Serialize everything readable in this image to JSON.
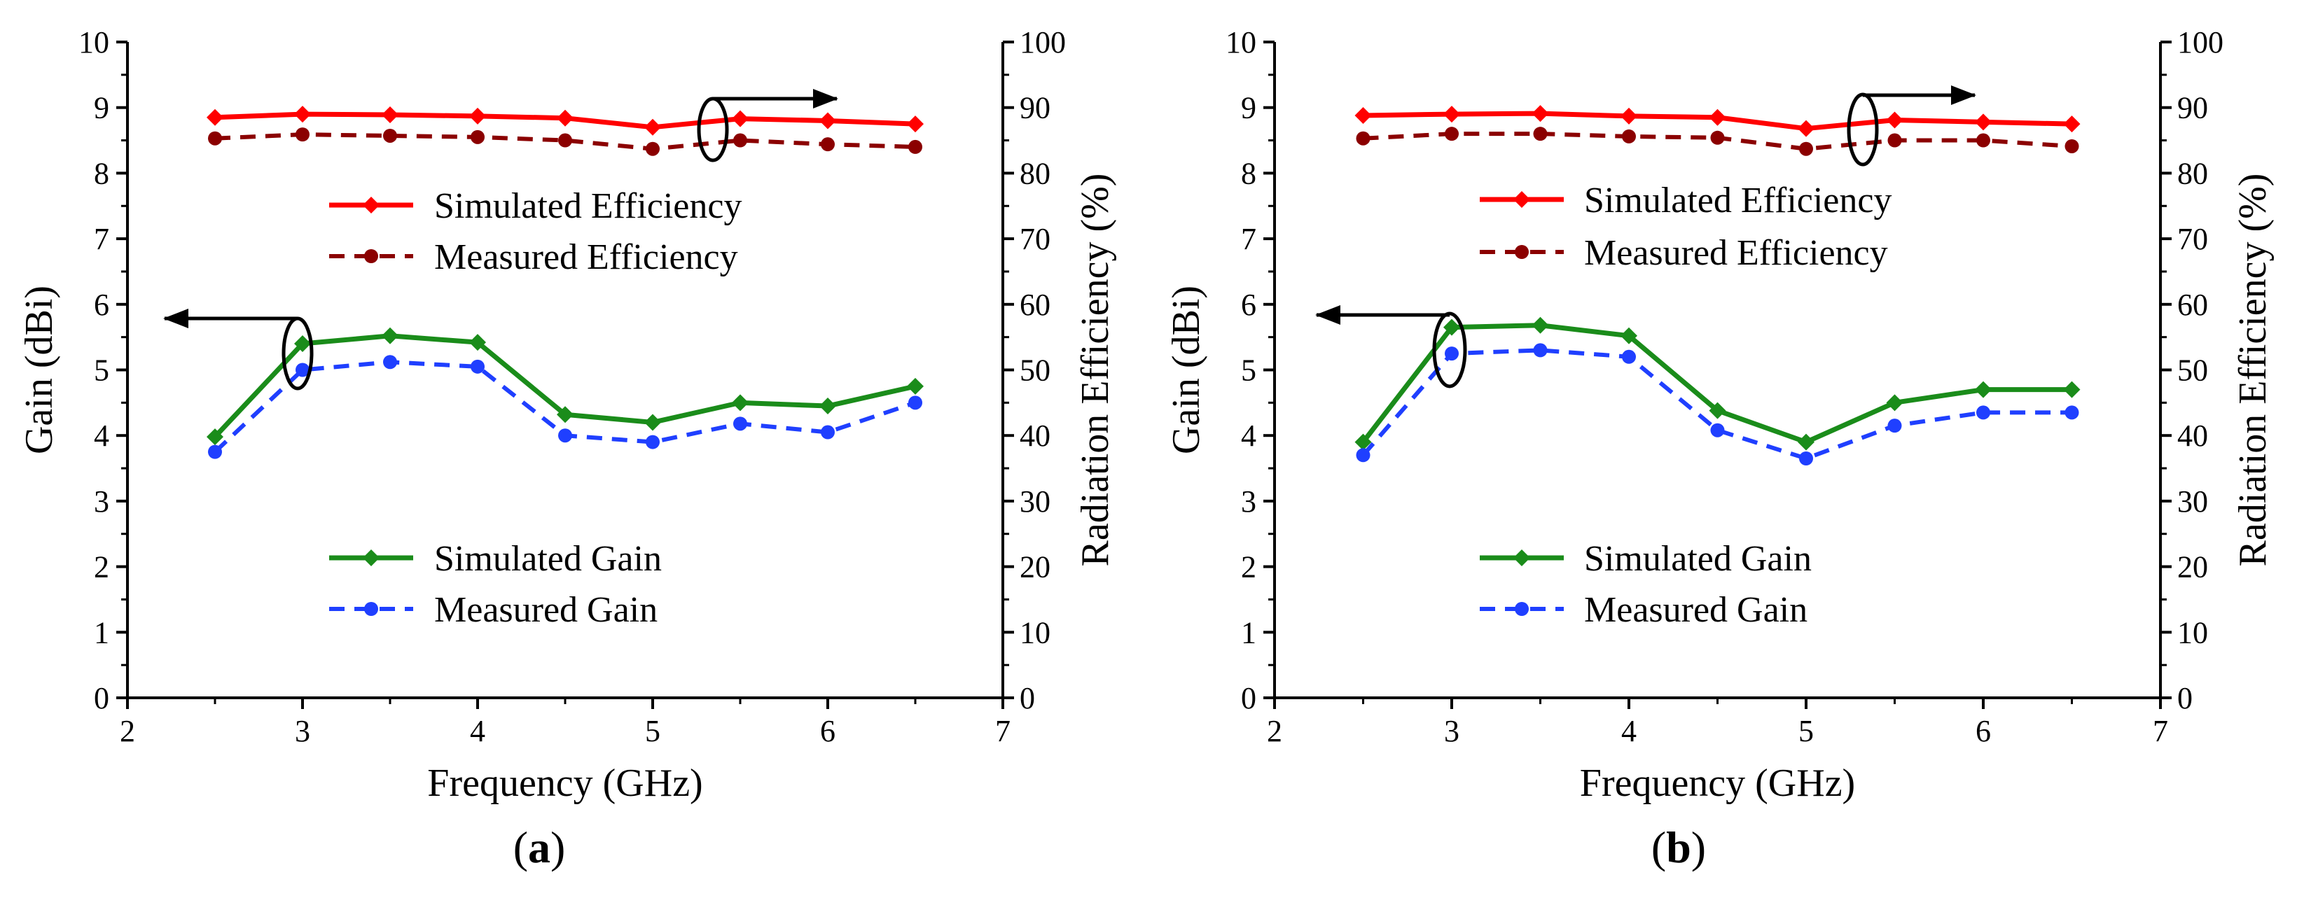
{
  "colors": {
    "sim_eff": "#ff0000",
    "meas_eff": "#8b0000",
    "sim_gain": "#1a8c1a",
    "meas_gain": "#1f3fff",
    "axis": "#000000"
  },
  "chart_data": [
    {
      "type": "line",
      "panel_label": "(a)",
      "panel_letter": "a",
      "xlabel": "Frequency (GHz)",
      "ylabel": "Gain (dBi)",
      "y2label": "Radiation Efficiency (%)",
      "xlim": [
        2,
        7
      ],
      "ylim": [
        0,
        10
      ],
      "y2lim": [
        0,
        100
      ],
      "xticks": [
        "2",
        "3",
        "4",
        "5",
        "6",
        "7"
      ],
      "yticks": [
        "0",
        "1",
        "2",
        "3",
        "4",
        "5",
        "6",
        "7",
        "8",
        "9",
        "10"
      ],
      "y2ticks": [
        "0",
        "10",
        "20",
        "30",
        "40",
        "50",
        "60",
        "70",
        "80",
        "90",
        "100"
      ],
      "x": [
        2.5,
        3.0,
        3.5,
        4.0,
        4.5,
        5.0,
        5.5,
        6.0,
        6.5
      ],
      "series": [
        {
          "name": "Simulated Efficiency",
          "axis": "right",
          "style": "solid",
          "marker": "diamond",
          "color_key": "sim_eff",
          "values": [
            88.5,
            89.0,
            88.9,
            88.7,
            88.4,
            87.0,
            88.3,
            88.0,
            87.5
          ]
        },
        {
          "name": "Measured Efficiency",
          "axis": "right",
          "style": "dashed",
          "marker": "circle",
          "color_key": "meas_eff",
          "values": [
            85.3,
            85.9,
            85.7,
            85.5,
            85.0,
            83.7,
            85.0,
            84.4,
            84.0
          ]
        },
        {
          "name": "Simulated Gain",
          "axis": "left",
          "style": "solid",
          "marker": "diamond",
          "color_key": "sim_gain",
          "values": [
            3.98,
            5.4,
            5.52,
            5.42,
            4.32,
            4.2,
            4.5,
            4.45,
            4.75
          ]
        },
        {
          "name": "Measured Gain",
          "axis": "left",
          "style": "dashed",
          "marker": "circle",
          "color_key": "meas_gain",
          "values": [
            3.75,
            5.0,
            5.12,
            5.05,
            4.0,
            3.9,
            4.18,
            4.05,
            4.5
          ]
        }
      ]
    },
    {
      "type": "line",
      "panel_label": "(b)",
      "panel_letter": "b",
      "xlabel": "Frequency (GHz)",
      "ylabel": "Gain (dBi)",
      "y2label": "Radiation Efficiency (%)",
      "xlim": [
        2,
        7
      ],
      "ylim": [
        0,
        10
      ],
      "y2lim": [
        0,
        100
      ],
      "xticks": [
        "2",
        "3",
        "4",
        "5",
        "6",
        "7"
      ],
      "yticks": [
        "0",
        "1",
        "2",
        "3",
        "4",
        "5",
        "6",
        "7",
        "8",
        "9",
        "10"
      ],
      "y2ticks": [
        "0",
        "10",
        "20",
        "30",
        "40",
        "50",
        "60",
        "70",
        "80",
        "90",
        "100"
      ],
      "x": [
        2.5,
        3.0,
        3.5,
        4.0,
        4.5,
        5.0,
        5.5,
        6.0,
        6.5
      ],
      "series": [
        {
          "name": "Simulated Efficiency",
          "axis": "right",
          "style": "solid",
          "marker": "diamond",
          "color_key": "sim_eff",
          "values": [
            88.8,
            89.0,
            89.1,
            88.7,
            88.5,
            86.8,
            88.1,
            87.8,
            87.5
          ]
        },
        {
          "name": "Measured Efficiency",
          "axis": "right",
          "style": "dashed",
          "marker": "circle",
          "color_key": "meas_eff",
          "values": [
            85.3,
            86.0,
            86.0,
            85.6,
            85.4,
            83.7,
            85.0,
            85.0,
            84.1
          ]
        },
        {
          "name": "Simulated Gain",
          "axis": "left",
          "style": "solid",
          "marker": "diamond",
          "color_key": "sim_gain",
          "values": [
            3.9,
            5.65,
            5.68,
            5.52,
            4.38,
            3.9,
            4.5,
            4.7,
            4.7
          ]
        },
        {
          "name": "Measured Gain",
          "axis": "left",
          "style": "dashed",
          "marker": "circle",
          "color_key": "meas_gain",
          "values": [
            3.7,
            5.25,
            5.3,
            5.2,
            4.08,
            3.65,
            4.15,
            4.35,
            4.35
          ]
        }
      ]
    }
  ]
}
